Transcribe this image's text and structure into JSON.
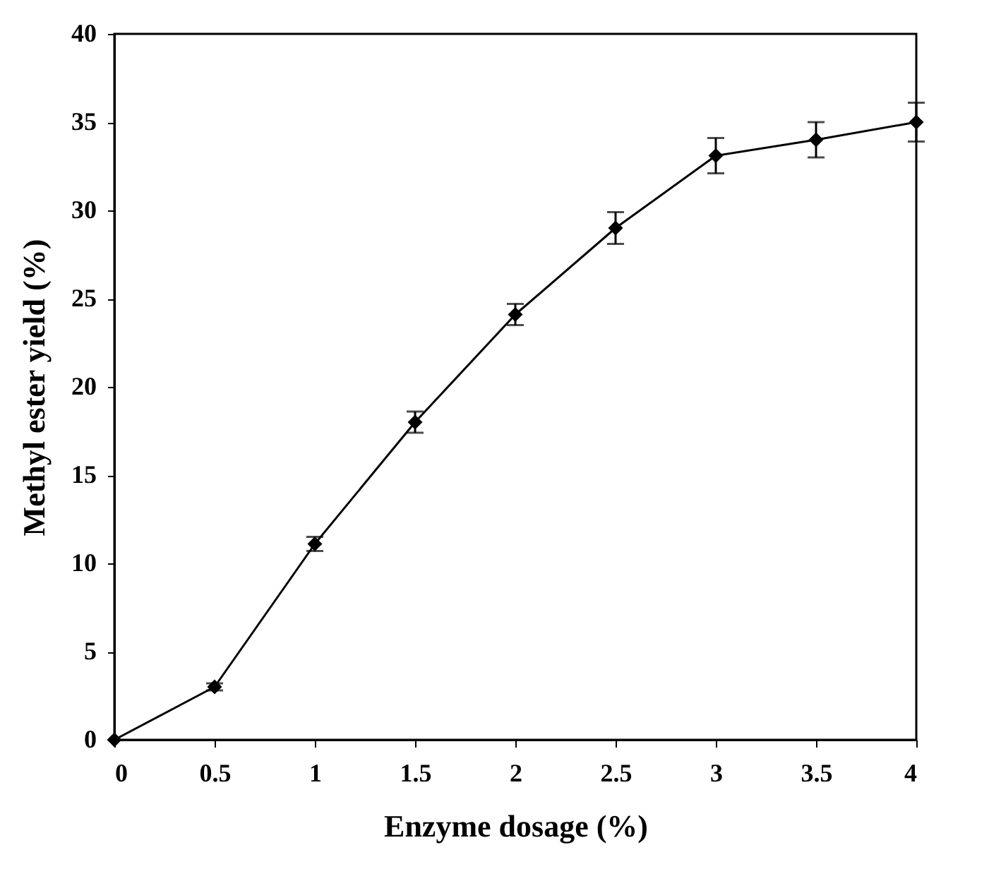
{
  "chart_data": {
    "type": "line",
    "xlabel": "Enzyme dosage (%)",
    "ylabel": "Methyl ester yield (%)",
    "x": [
      0,
      0.5,
      1,
      1.5,
      2,
      2.5,
      3,
      3.5,
      4
    ],
    "series": [
      {
        "color": "#000000",
        "values": [
          0,
          3.0,
          11.1,
          18.0,
          24.1,
          29.0,
          33.1,
          34.0,
          35.0
        ],
        "errors": [
          null,
          0.2,
          0.4,
          0.6,
          0.6,
          0.9,
          1.0,
          1.0,
          1.1
        ]
      }
    ],
    "xlim": [
      0,
      4
    ],
    "xticks": [
      0,
      0.5,
      1,
      1.5,
      2,
      2.5,
      3,
      3.5,
      4
    ],
    "ylim": [
      0,
      40
    ],
    "yticks": [
      0,
      5,
      10,
      15,
      20,
      25,
      30,
      35,
      40
    ],
    "grid": false,
    "legend": false,
    "marker": "diamond",
    "line_style": "solid"
  }
}
